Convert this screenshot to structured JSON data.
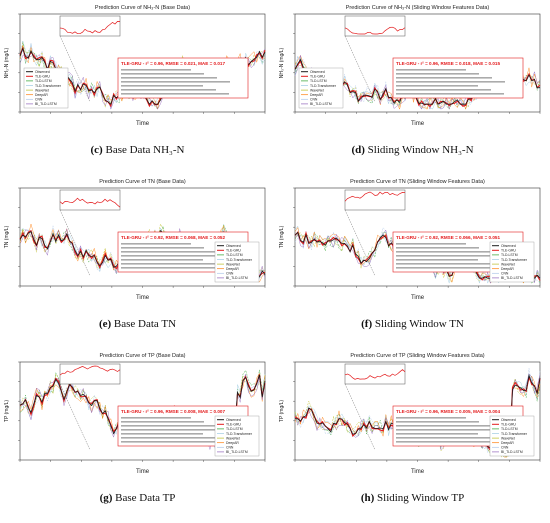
{
  "figure": {
    "legend_entries": [
      "Observed",
      "TLE-GRU",
      "TLD-LSTM",
      "TLD-Transformer",
      "WaveNet",
      "DeepAR",
      "CNN",
      "BI_TLD-LSTM"
    ],
    "colors": {
      "observed": "#1a1a1a",
      "main": "#e31a1c",
      "others": [
        "#2ca02c",
        "#9ecae1",
        "#bcbd22",
        "#ff7f0e",
        "#aec7e8",
        "#9467bd"
      ],
      "box_border": "#e31a1c"
    }
  },
  "panels": [
    {
      "key": "c",
      "title": "Prediction Curve of NH₃-N (Base Data)",
      "ylabel": "NH₃-N (mg/L)",
      "xlabel": "Time",
      "caption_letter": "(c)",
      "caption_text": "Base Data NH₃-N",
      "metrics_head": "TLE-GRU - r² = 0.96, RMSE = 0.021, MAE = 0.017"
    },
    {
      "key": "d",
      "title": "Prediction Curve of NH₃-N (Sliding Window Features Data)",
      "ylabel": "NH₃-N (mg/L)",
      "xlabel": "Time",
      "caption_letter": "(d)",
      "caption_text": "Sliding Window NH₃-N",
      "metrics_head": "TLE-GRU - r² = 0.96, RMSE = 0.018, MAE = 0.015"
    },
    {
      "key": "e",
      "title": "Prediction Curve of TN (Base Data)",
      "ylabel": "TN (mg/L)",
      "xlabel": "Time",
      "caption_letter": "(e)",
      "caption_text": "Base Data TN",
      "metrics_head": "TLE-GRU - r² = 0.92, RMSE = 0.068, MAE = 0.052"
    },
    {
      "key": "f",
      "title": "Prediction Curve of TN (Sliding Window Features Data)",
      "ylabel": "TN (mg/L)",
      "xlabel": "Time",
      "caption_letter": "(f)",
      "caption_text": "Sliding Window TN",
      "metrics_head": "TLE-GRU - r² = 0.92, RMSE = 0.066, MAE = 0.051"
    },
    {
      "key": "g",
      "title": "Prediction Curve of TP (Base Data)",
      "ylabel": "TP (mg/L)",
      "xlabel": "Time",
      "caption_letter": "(g)",
      "caption_text": "Base Data TP",
      "metrics_head": "TLE-GRU - r² = 0.96, RMSE = 0.008, MAE = 0.007"
    },
    {
      "key": "h",
      "title": "Prediction Curve of TP (Sliding Window Features Data)",
      "ylabel": "TP (mg/L)",
      "xlabel": "Time",
      "caption_letter": "(h)",
      "caption_text": "Sliding Window TP",
      "metrics_head": "TLE-GRU - r² = 0.96, RMSE = 0.005, MAE = 0.004"
    }
  ]
}
